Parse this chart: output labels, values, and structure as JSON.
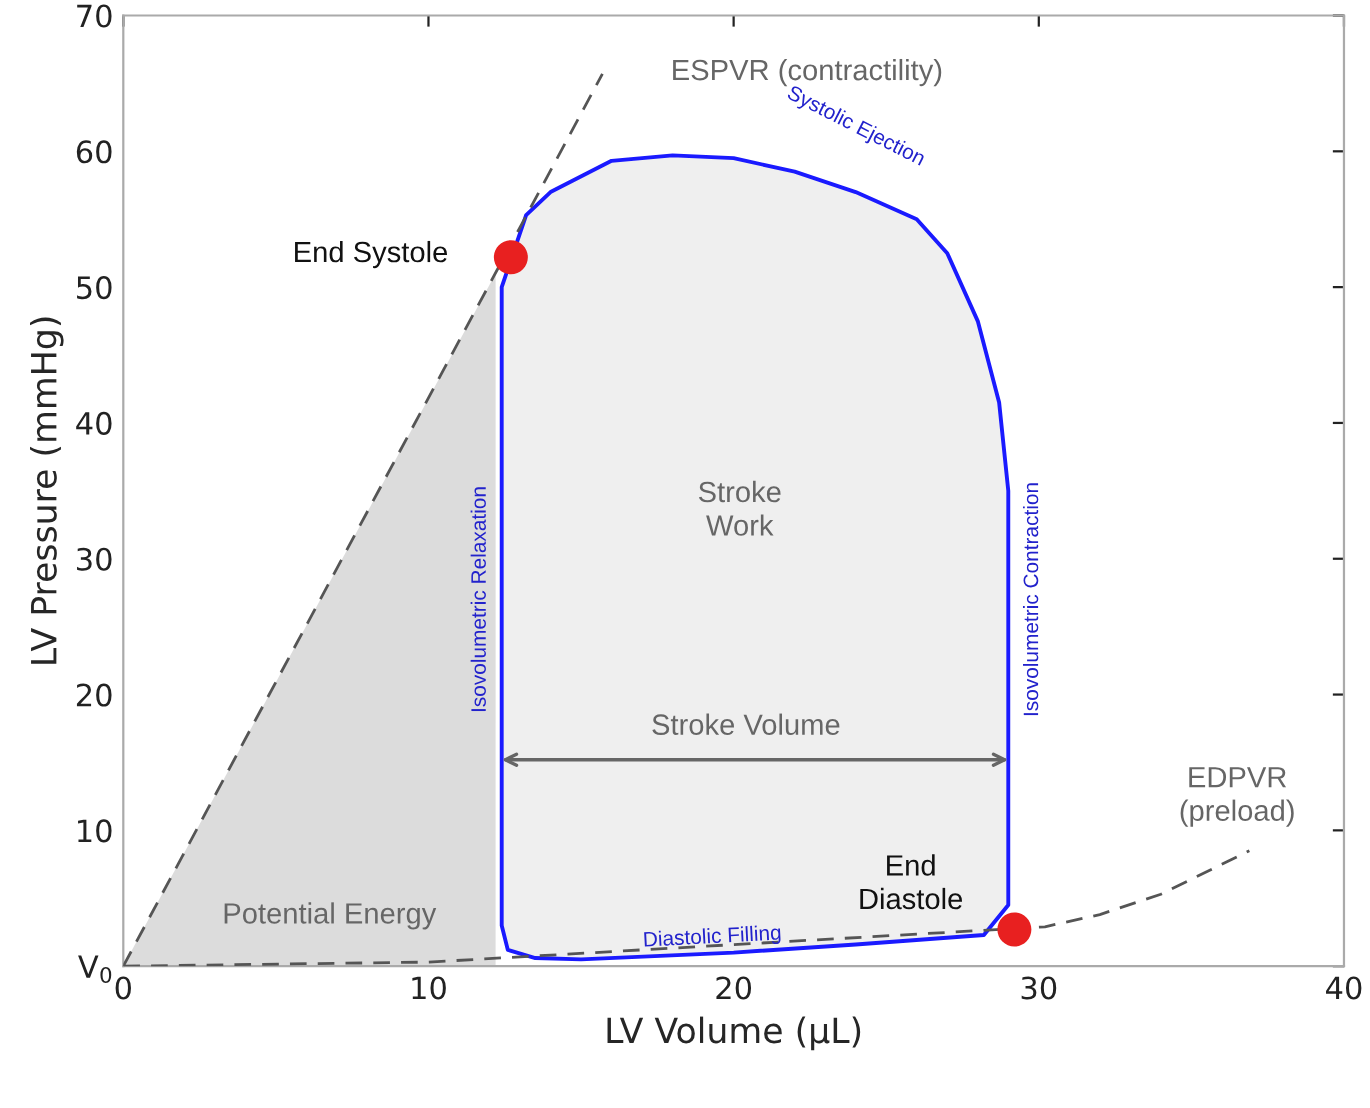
{
  "chart_data": {
    "type": "area",
    "xlabel": "LV Volume (μL)",
    "ylabel": "LV Pressure (mmHg)",
    "xlim": [
      0,
      40
    ],
    "ylim": [
      0,
      70
    ],
    "xticks": [
      0,
      10,
      20,
      30,
      40
    ],
    "yticks": [
      {
        "value": 0,
        "label": "V$_{0}$"
      },
      10,
      20,
      30,
      40,
      50,
      60,
      70
    ],
    "grid": false,
    "series": [
      {
        "color": "#dcdcdc",
        "x": [
          0,
          12.2
        ],
        "values": [
          0,
          51.0
        ]
      },
      {
        "type": "line",
        "line_style": "dashed",
        "color": "#555555",
        "x": [
          0,
          15.7
        ],
        "values": [
          0,
          65.7
        ]
      },
      {
        "type": "line",
        "line_style": "dashed",
        "color": "#555555",
        "x": [
          0,
          10,
          30.2,
          32,
          34,
          36.9
        ],
        "values": [
          0,
          0.3,
          2.9,
          3.8,
          5.3,
          8.5
        ]
      },
      {
        "color": "#1a1aff",
        "x": [
          12.4,
          12.4,
          13.2,
          14,
          16,
          18,
          20,
          22,
          24,
          26,
          27,
          28,
          28.7,
          29,
          29,
          29,
          28.2,
          24,
          20,
          15,
          13.5,
          12.6,
          12.4
        ],
        "values": [
          3,
          50,
          55.3,
          57,
          59.3,
          59.7,
          59.5,
          58.5,
          57,
          55,
          52.5,
          47.5,
          41.5,
          35,
          22,
          4.5,
          2.3,
          1.6,
          1.0,
          0.5,
          0.6,
          1.2,
          3
        ]
      },
      {
        "type": "scatter",
        "marker": "circle",
        "color": "#e82020",
        "x": [
          12.7,
          29.2
        ],
        "values": [
          52.2,
          2.7
        ]
      }
    ],
    "annotations": [
      "End Systole",
      "End\nDiastole",
      "Stroke\nWork",
      "Potential Energy",
      "Stroke Volume",
      "ESPVR (contractility)",
      "EDPVR\n(preload)",
      "Isovolumetric Relaxation",
      "Isovolumetric Contraction",
      "Systolic Ejection",
      "Diastolic Filling"
    ]
  }
}
